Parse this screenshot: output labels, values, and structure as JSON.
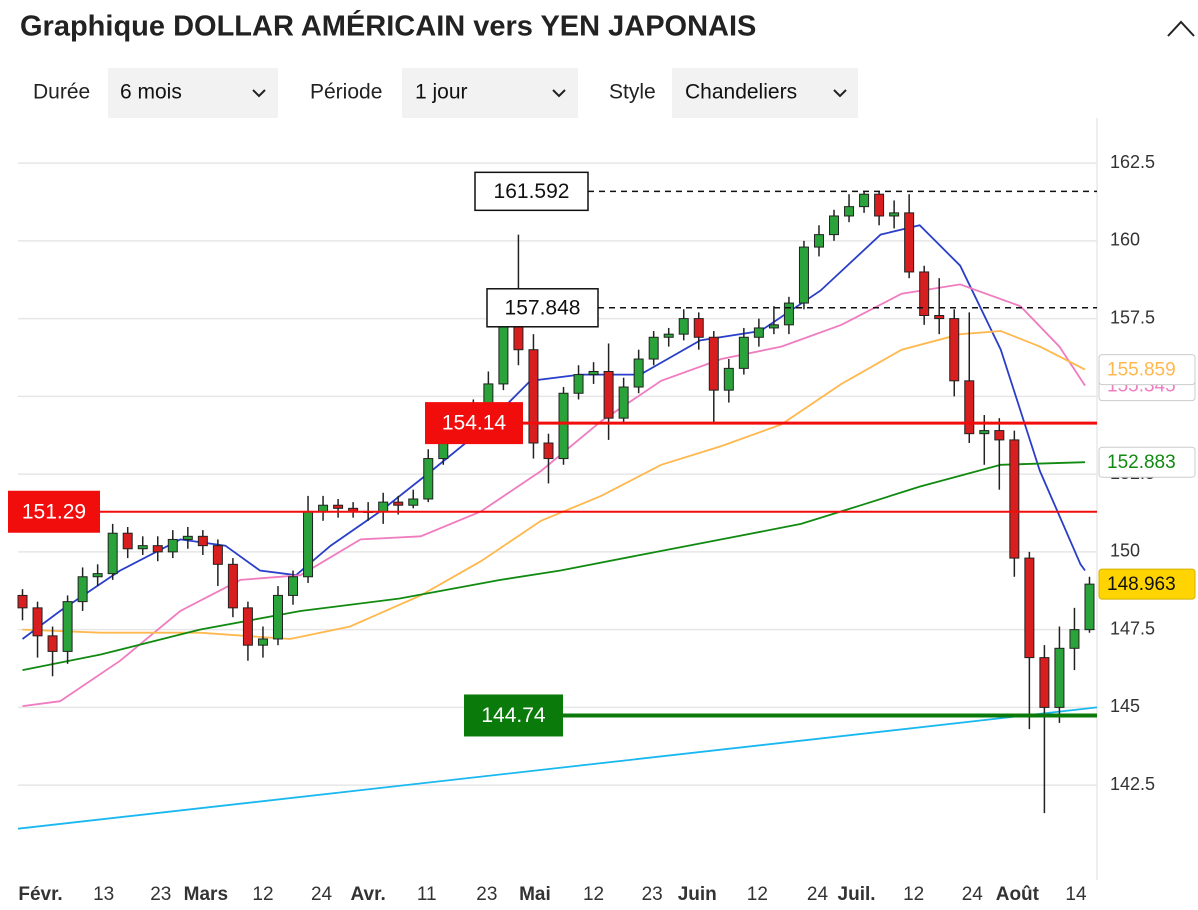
{
  "header": {
    "title": "Graphique DOLLAR AMÉRICAIN vers YEN JAPONAIS"
  },
  "controls": [
    {
      "label": "Durée",
      "value": "6 mois"
    },
    {
      "label": "Période",
      "value": "1 jour"
    },
    {
      "label": "Style",
      "value": "Chandeliers"
    }
  ],
  "chart_data": {
    "type": "candlestick",
    "up_color": "#2aa33a",
    "down_color": "#d81e1e",
    "open": [
      148.6,
      148.2,
      147.3,
      146.8,
      148.4,
      149.2,
      149.3,
      150.6,
      150.1,
      150.2,
      150.0,
      150.4,
      150.5,
      150.2,
      149.6,
      148.2,
      147.0,
      147.2,
      148.6,
      149.2,
      151.3,
      151.5,
      151.4,
      151.3,
      151.3,
      151.6,
      151.5,
      151.7,
      153.0,
      153.8,
      154.2,
      154.6,
      155.4,
      157.8,
      156.5,
      153.5,
      153.0,
      155.1,
      155.7,
      155.8,
      154.3,
      155.3,
      156.2,
      156.9,
      157.0,
      157.5,
      156.9,
      155.2,
      155.9,
      156.9,
      157.2,
      157.3,
      158.0,
      159.8,
      160.2,
      160.8,
      161.1,
      161.5,
      160.8,
      160.9,
      159.0,
      157.6,
      157.5,
      155.5,
      153.8,
      153.9,
      153.6,
      149.8,
      146.6,
      145.0,
      146.9,
      147.5
    ],
    "high": [
      148.8,
      148.4,
      147.6,
      148.6,
      149.5,
      149.6,
      150.9,
      150.8,
      150.5,
      150.5,
      150.7,
      150.8,
      150.7,
      150.4,
      149.8,
      148.4,
      147.6,
      148.9,
      149.4,
      151.8,
      151.8,
      151.7,
      151.6,
      151.6,
      151.9,
      151.8,
      152.0,
      153.3,
      154.0,
      154.5,
      154.9,
      155.8,
      158.0,
      160.2,
      157.0,
      153.8,
      155.3,
      156.0,
      156.1,
      156.7,
      155.6,
      156.5,
      157.1,
      157.2,
      157.8,
      157.7,
      157.1,
      156.2,
      157.2,
      157.5,
      157.9,
      158.2,
      160.0,
      160.5,
      161.0,
      161.5,
      161.592,
      161.6,
      161.3,
      161.5,
      159.2,
      158.8,
      157.8,
      157.7,
      154.4,
      154.3,
      153.9,
      150.0,
      147.0,
      147.6,
      148.2,
      149.2
    ],
    "low": [
      147.8,
      146.6,
      146.0,
      146.4,
      148.1,
      148.9,
      149.1,
      149.8,
      149.9,
      149.7,
      149.8,
      150.1,
      149.9,
      148.9,
      147.9,
      146.5,
      146.6,
      147.0,
      148.3,
      149.0,
      151.0,
      151.1,
      151.1,
      151.0,
      150.9,
      151.2,
      151.4,
      151.6,
      152.8,
      153.6,
      154.0,
      154.4,
      155.2,
      156.0,
      153.0,
      152.2,
      152.8,
      154.9,
      155.4,
      153.6,
      154.1,
      155.1,
      156.0,
      156.6,
      156.8,
      156.5,
      154.1,
      154.8,
      155.7,
      156.6,
      157.0,
      157.0,
      157.8,
      159.5,
      160.0,
      160.6,
      160.9,
      160.5,
      160.4,
      158.8,
      157.3,
      157.0,
      155.0,
      153.5,
      152.8,
      152.0,
      149.2,
      144.3,
      141.6,
      144.5,
      146.2,
      147.4
    ],
    "close": [
      148.2,
      147.3,
      146.8,
      148.4,
      149.2,
      149.3,
      150.6,
      150.1,
      150.2,
      150.0,
      150.4,
      150.5,
      150.2,
      149.6,
      148.2,
      147.0,
      147.2,
      148.6,
      149.2,
      151.3,
      151.5,
      151.4,
      151.3,
      151.3,
      151.6,
      151.5,
      151.7,
      153.0,
      153.8,
      154.2,
      154.6,
      155.4,
      157.8,
      156.5,
      153.5,
      153.0,
      155.1,
      155.7,
      155.8,
      154.3,
      155.3,
      156.2,
      156.9,
      157.0,
      157.5,
      156.9,
      155.2,
      155.9,
      156.9,
      157.2,
      157.3,
      158.0,
      159.8,
      160.2,
      160.8,
      161.1,
      161.5,
      160.8,
      160.9,
      159.0,
      157.6,
      157.5,
      155.5,
      153.8,
      153.9,
      153.6,
      149.8,
      146.6,
      145.0,
      146.9,
      147.5,
      148.963
    ],
    "lines": [
      {
        "color": "#2a3fc8",
        "x": [
          0,
          2.5,
          6.5,
          10.5,
          13.5,
          15.8,
          18.2,
          20.5,
          23.8,
          27.2,
          30.5,
          33.8,
          37.1,
          41.1,
          45.1,
          49.1,
          53.1,
          57.1,
          59.7,
          62.4,
          65.1,
          67.7,
          70.4,
          70.7
        ],
        "values": [
          147.2,
          148.1,
          149.4,
          150.4,
          150.2,
          149.4,
          149.25,
          150.2,
          151.3,
          152.6,
          153.9,
          155.5,
          155.7,
          155.7,
          156.8,
          157.1,
          158.4,
          160.2,
          160.5,
          159.2,
          156.5,
          152.6,
          149.6,
          149.4
        ]
      },
      {
        "color": "#f07cc0",
        "x": [
          0,
          2.5,
          6.5,
          10.5,
          14.5,
          18.5,
          22.5,
          26.5,
          30.5,
          34.5,
          38.5,
          42.5,
          46.5,
          50.5,
          54.5,
          58.5,
          62.4,
          66.4,
          69.0,
          70.7
        ],
        "values": [
          145.04,
          145.2,
          146.5,
          148.1,
          149.1,
          149.25,
          150.4,
          150.5,
          151.3,
          152.6,
          154.2,
          155.5,
          156.2,
          156.6,
          157.3,
          158.3,
          158.6,
          157.9,
          156.6,
          155.345
        ]
      },
      {
        "color": "#ffb84d",
        "x": [
          0,
          5.2,
          11.8,
          17.8,
          21.8,
          26.5,
          30.5,
          34.5,
          38.5,
          42.5,
          46.5,
          50.5,
          54.5,
          58.5,
          62.4,
          65.1,
          67.7,
          70.7
        ],
        "values": [
          147.5,
          147.4,
          147.4,
          147.2,
          147.6,
          148.6,
          149.7,
          151.0,
          151.8,
          152.8,
          153.4,
          154.1,
          155.4,
          156.5,
          157.0,
          157.1,
          156.6,
          155.859
        ]
      },
      {
        "color": "#118a11",
        "x": [
          0,
          5.2,
          11.8,
          18.5,
          25.1,
          31.8,
          35.8,
          41.1,
          46.5,
          51.8,
          55.8,
          59.7,
          65.1,
          70.7
        ],
        "values": [
          146.2,
          146.7,
          147.5,
          148.1,
          148.5,
          149.1,
          149.4,
          149.9,
          150.4,
          150.9,
          151.5,
          152.1,
          152.8,
          152.883
        ]
      },
      {
        "color": "#1ab8f0",
        "x": [
          -0.3,
          71.5
        ],
        "values": [
          141.1,
          145.0
        ]
      }
    ],
    "levels": [
      {
        "value": 154.14,
        "color": "#f20d0d"
      },
      {
        "value": 151.29,
        "color": "#f20d0d"
      },
      {
        "value": 144.74,
        "color": "#0a7a0a"
      }
    ],
    "marks": [
      {
        "value": 161.592
      },
      {
        "value": 157.848
      }
    ],
    "xlim": [
      -0.3,
      71.5
    ],
    "ylim": [
      139.45,
      163.95
    ],
    "yticks": [
      142.5,
      145,
      147.5,
      150,
      152.5,
      155,
      157.5,
      160,
      162.5
    ],
    "xticks": [
      {
        "value": 1.2,
        "label": "Févr.",
        "bold": true
      },
      {
        "value": 5.4,
        "label": "13"
      },
      {
        "value": 9.2,
        "label": "23"
      },
      {
        "value": 12.2,
        "label": "Mars",
        "bold": true
      },
      {
        "value": 16,
        "label": "12"
      },
      {
        "value": 19.9,
        "label": "24"
      },
      {
        "value": 23,
        "label": "Avr.",
        "bold": true
      },
      {
        "value": 26.9,
        "label": "11"
      },
      {
        "value": 30.9,
        "label": "23"
      },
      {
        "value": 34.1,
        "label": "Mai",
        "bold": true
      },
      {
        "value": 38,
        "label": "12"
      },
      {
        "value": 41.9,
        "label": "23"
      },
      {
        "value": 44.9,
        "label": "Juin",
        "bold": true
      },
      {
        "value": 48.9,
        "label": "12"
      },
      {
        "value": 52.9,
        "label": "24"
      },
      {
        "value": 55.5,
        "label": "Juil.",
        "bold": true
      },
      {
        "value": 59.3,
        "label": "12"
      },
      {
        "value": 63.2,
        "label": "24"
      },
      {
        "value": 66.2,
        "label": "Août",
        "bold": true
      },
      {
        "value": 70.1,
        "label": "14"
      }
    ],
    "grid": true
  }
}
